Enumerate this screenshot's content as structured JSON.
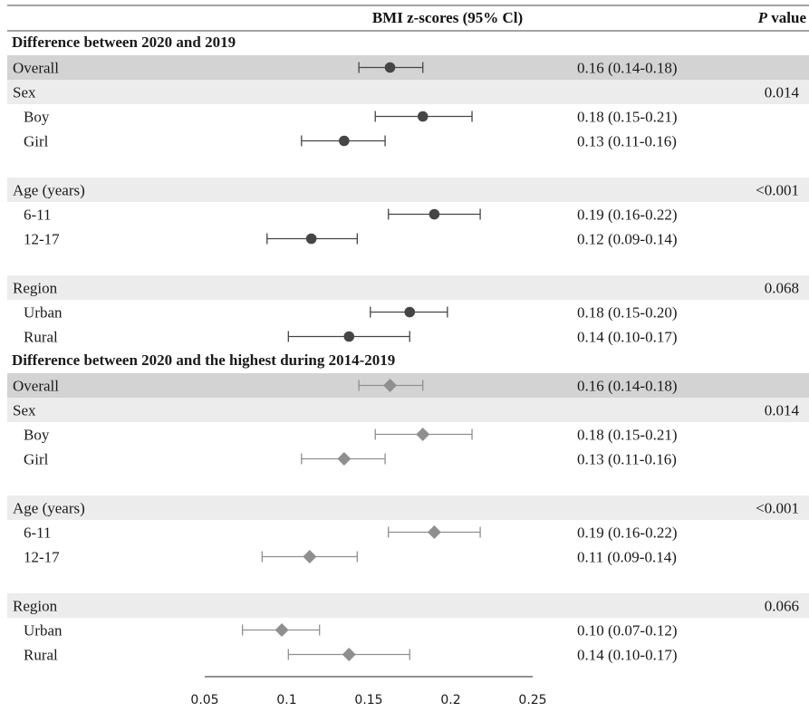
{
  "chart_data": {
    "type": "forest",
    "header": {
      "estimate_label": "BMI z-scores (95% Cl)",
      "p_label_italic": "P",
      "p_label_rest": " value"
    },
    "axis": {
      "xlim": [
        0.05,
        0.25
      ],
      "ticks": [
        "0.05",
        "0.1",
        "0.15",
        "0.2",
        "0.25"
      ]
    },
    "colors": {
      "panel1": "#454545",
      "panel2": "#8f8f8f",
      "band_dark": "#d3d3d3",
      "band_light": "#ececec"
    },
    "panels": [
      {
        "title": "Difference between 2020 and 2019",
        "marker": "circle",
        "rows": [
          {
            "label": "Overall",
            "band": "dark",
            "est": 0.163,
            "lo": 0.144,
            "hi": 0.183,
            "ci_text": "0.16 (0.14-0.18)",
            "p": ""
          },
          {
            "label": "Sex",
            "band": "light",
            "p": "0.014"
          },
          {
            "label": "Boy",
            "indent": true,
            "est": 0.183,
            "lo": 0.154,
            "hi": 0.213,
            "ci_text": "0.18 (0.15-0.21)",
            "p": ""
          },
          {
            "label": "Girl",
            "indent": true,
            "est": 0.135,
            "lo": 0.109,
            "hi": 0.16,
            "ci_text": "0.13 (0.11-0.16)",
            "p": ""
          },
          {
            "label": "Age (years)",
            "band": "light",
            "gap_before": true,
            "p": "<0.001"
          },
          {
            "label": "6-11",
            "indent": true,
            "est": 0.19,
            "lo": 0.162,
            "hi": 0.218,
            "ci_text": "0.19 (0.16-0.22)",
            "p": ""
          },
          {
            "label": "12-17",
            "indent": true,
            "est": 0.115,
            "lo": 0.088,
            "hi": 0.143,
            "ci_text": "0.12 (0.09-0.14)",
            "p": ""
          },
          {
            "label": "Region",
            "band": "light",
            "gap_before": true,
            "p": "0.068"
          },
          {
            "label": "Urban",
            "indent": true,
            "est": 0.175,
            "lo": 0.151,
            "hi": 0.198,
            "ci_text": "0.18 (0.15-0.20)",
            "p": ""
          },
          {
            "label": "Rural",
            "indent": true,
            "est": 0.138,
            "lo": 0.101,
            "hi": 0.175,
            "ci_text": "0.14 (0.10-0.17)",
            "p": ""
          }
        ]
      },
      {
        "title": "Difference between 2020 and the highest during 2014-2019",
        "marker": "diamond",
        "rows": [
          {
            "label": "Overall",
            "band": "dark",
            "est": 0.163,
            "lo": 0.144,
            "hi": 0.183,
            "ci_text": "0.16 (0.14-0.18)",
            "p": ""
          },
          {
            "label": "Sex",
            "band": "light",
            "p": "0.014"
          },
          {
            "label": "Boy",
            "indent": true,
            "est": 0.183,
            "lo": 0.154,
            "hi": 0.213,
            "ci_text": "0.18 (0.15-0.21)",
            "p": ""
          },
          {
            "label": "Girl",
            "indent": true,
            "est": 0.135,
            "lo": 0.109,
            "hi": 0.16,
            "ci_text": "0.13 (0.11-0.16)",
            "p": ""
          },
          {
            "label": "Age (years)",
            "band": "light",
            "gap_before": true,
            "p": "<0.001"
          },
          {
            "label": "6-11",
            "indent": true,
            "est": 0.19,
            "lo": 0.162,
            "hi": 0.218,
            "ci_text": "0.19 (0.16-0.22)",
            "p": ""
          },
          {
            "label": "12-17",
            "indent": true,
            "est": 0.114,
            "lo": 0.085,
            "hi": 0.143,
            "ci_text": "0.11 (0.09-0.14)",
            "p": ""
          },
          {
            "label": "Region",
            "band": "light",
            "gap_before": true,
            "p": "0.066"
          },
          {
            "label": "Urban",
            "indent": true,
            "est": 0.097,
            "lo": 0.073,
            "hi": 0.12,
            "ci_text": "0.10 (0.07-0.12)",
            "p": ""
          },
          {
            "label": "Rural",
            "indent": true,
            "est": 0.138,
            "lo": 0.101,
            "hi": 0.175,
            "ci_text": "0.14 (0.10-0.17)",
            "p": ""
          }
        ]
      }
    ]
  }
}
